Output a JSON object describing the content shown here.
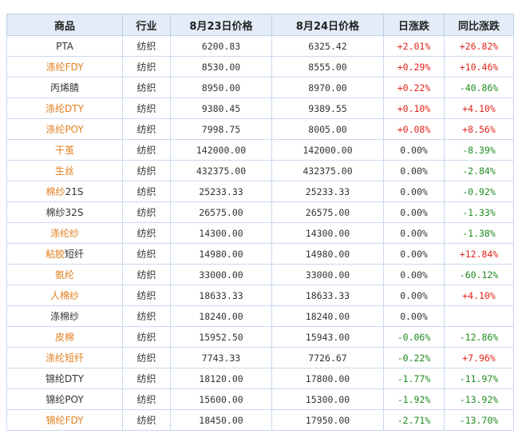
{
  "headers": [
    "商品",
    "行业",
    "8月23日价格",
    "8月24日价格",
    "日涨跌",
    "同比涨跌"
  ],
  "colors": {
    "highlight_name": "#e07f1e",
    "up": "#e0241c",
    "down": "#1f8a1f",
    "header_bg": "#e3ecf8"
  },
  "rows": [
    {
      "name": "PTA",
      "industry": "纺织",
      "p1": "6200.83",
      "p2": "6325.42",
      "day": "+2.01%",
      "yoy": "+26.82%"
    },
    {
      "name": "涤纶FDY",
      "industry": "纺织",
      "p1": "8530.00",
      "p2": "8555.00",
      "day": "+0.29%",
      "yoy": "+10.46%"
    },
    {
      "name": "丙烯腈",
      "industry": "纺织",
      "p1": "8950.00",
      "p2": "8970.00",
      "day": "+0.22%",
      "yoy": "-40.86%"
    },
    {
      "name": "涤纶DTY",
      "industry": "纺织",
      "p1": "9380.45",
      "p2": "9389.55",
      "day": "+0.10%",
      "yoy": "+4.10%"
    },
    {
      "name": "涤纶POY",
      "industry": "纺织",
      "p1": "7998.75",
      "p2": "8005.00",
      "day": "+0.08%",
      "yoy": "+8.56%"
    },
    {
      "name": "干茧",
      "industry": "纺织",
      "p1": "142000.00",
      "p2": "142000.00",
      "day": "0.00%",
      "yoy": "-8.39%"
    },
    {
      "name": "生丝",
      "industry": "纺织",
      "p1": "432375.00",
      "p2": "432375.00",
      "day": "0.00%",
      "yoy": "-2.84%"
    },
    {
      "name": "棉纱21S",
      "industry": "纺织",
      "p1": "25233.33",
      "p2": "25233.33",
      "day": "0.00%",
      "yoy": "-0.92%"
    },
    {
      "name": "棉纱32S",
      "industry": "纺织",
      "p1": "26575.00",
      "p2": "26575.00",
      "day": "0.00%",
      "yoy": "-1.33%"
    },
    {
      "name": "涤纶纱",
      "industry": "纺织",
      "p1": "14300.00",
      "p2": "14300.00",
      "day": "0.00%",
      "yoy": "-1.38%"
    },
    {
      "name": "粘胶短纤",
      "industry": "纺织",
      "p1": "14980.00",
      "p2": "14980.00",
      "day": "0.00%",
      "yoy": "+12.84%"
    },
    {
      "name": "氨纶",
      "industry": "纺织",
      "p1": "33000.00",
      "p2": "33000.00",
      "day": "0.00%",
      "yoy": "-60.12%"
    },
    {
      "name": "人棉纱",
      "industry": "纺织",
      "p1": "18633.33",
      "p2": "18633.33",
      "day": "0.00%",
      "yoy": "+4.10%"
    },
    {
      "name": "涤棉纱",
      "industry": "纺织",
      "p1": "18240.00",
      "p2": "18240.00",
      "day": "0.00%",
      "yoy": ""
    },
    {
      "name": "皮棉",
      "industry": "纺织",
      "p1": "15952.50",
      "p2": "15943.00",
      "day": "-0.06%",
      "yoy": "-12.86%"
    },
    {
      "name": "涤纶短纤",
      "industry": "纺织",
      "p1": "7743.33",
      "p2": "7726.67",
      "day": "-0.22%",
      "yoy": "+7.96%"
    },
    {
      "name": "锦纶DTY",
      "industry": "纺织",
      "p1": "18120.00",
      "p2": "17800.00",
      "day": "-1.77%",
      "yoy": "-11.97%"
    },
    {
      "name": "锦纶POY",
      "industry": "纺织",
      "p1": "15600.00",
      "p2": "15300.00",
      "day": "-1.92%",
      "yoy": "-13.92%"
    },
    {
      "name": "锦纶FDY",
      "industry": "纺织",
      "p1": "18450.00",
      "p2": "17950.00",
      "day": "-2.71%",
      "yoy": "-13.70%"
    }
  ]
}
